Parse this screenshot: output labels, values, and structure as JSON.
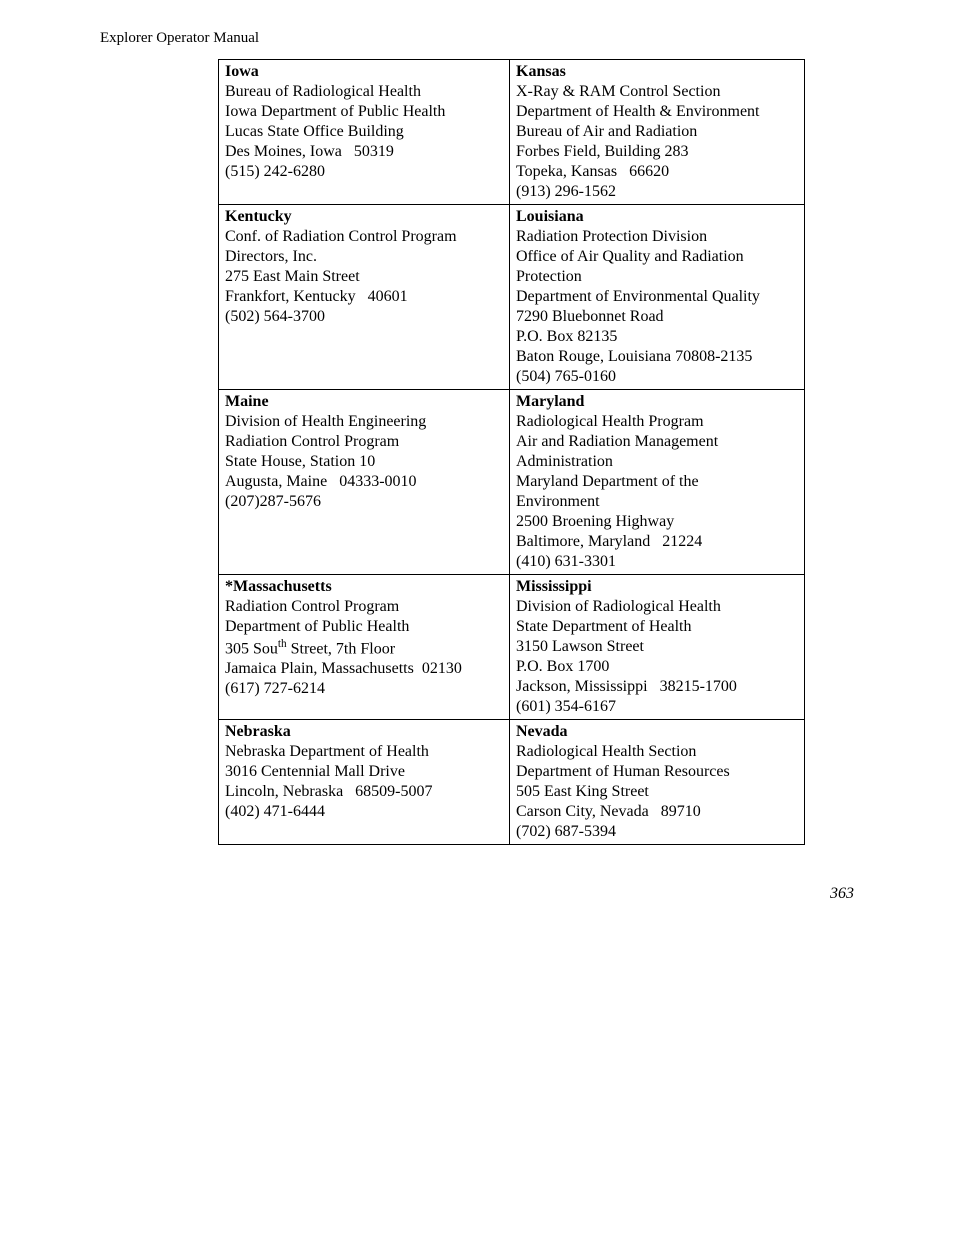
{
  "header": "Explorer Operator Manual",
  "page_number": "363",
  "table": {
    "rows": [
      {
        "left": {
          "state": "Iowa",
          "lines": [
            "Bureau of Radiological Health",
            "Iowa Department of Public Health",
            "Lucas State Office Building",
            "Des Moines, Iowa   50319",
            "(515) 242-6280"
          ]
        },
        "right": {
          "state": "Kansas",
          "lines": [
            "X-Ray & RAM Control Section",
            "Department of Health & Environment",
            "Bureau of Air and Radiation",
            "Forbes Field, Building 283",
            "Topeka, Kansas   66620",
            "(913) 296-1562"
          ]
        }
      },
      {
        "left": {
          "state": "Kentucky",
          "lines": [
            "Conf. of Radiation Control Program",
            "Directors, Inc.",
            "275 East Main Street",
            "Frankfort, Kentucky   40601",
            "(502) 564-3700"
          ]
        },
        "right": {
          "state": "Louisiana",
          "lines": [
            "Radiation Protection Division",
            "Office of Air Quality and Radiation",
            "Protection",
            "Department of Environmental Quality",
            "7290 Bluebonnet Road",
            "P.O. Box 82135",
            "Baton Rouge, Louisiana 70808-2135",
            "(504) 765-0160"
          ]
        }
      },
      {
        "left": {
          "state": "Maine",
          "lines": [
            "Division of Health Engineering",
            "Radiation Control Program",
            "State House, Station 10",
            "Augusta, Maine   04333-0010",
            "(207)287-5676"
          ]
        },
        "right": {
          "state": "Maryland",
          "lines": [
            "Radiological Health Program",
            "Air and Radiation Management",
            "Administration",
            "Maryland Department of the",
            "Environment",
            "2500 Broening Highway",
            "Baltimore, Maryland   21224",
            "(410) 631-3301"
          ]
        }
      },
      {
        "left": {
          "state": "*Massachusetts",
          "lines": [
            "Radiation Control Program",
            "Department of Public Health",
            "305 South Street, 7th Floor",
            "Jamaica Plain, Massachusetts  02130",
            "(617) 727-6214"
          ],
          "superscript_line_index": 2,
          "superscript_text": "th"
        },
        "right": {
          "state": "Mississippi",
          "lines": [
            "Division of Radiological Health",
            "State Department of Health",
            "3150 Lawson Street",
            "P.O. Box 1700",
            "Jackson, Mississippi   38215-1700",
            "(601) 354-6167"
          ]
        }
      },
      {
        "left": {
          "state": "Nebraska",
          "lines": [
            "Nebraska Department of Health",
            "3016 Centennial Mall Drive",
            "Lincoln, Nebraska   68509-5007",
            "(402) 471-6444"
          ]
        },
        "right": {
          "state": "Nevada",
          "lines": [
            "Radiological Health Section",
            "Department of Human Resources",
            "505 East King Street",
            "Carson City, Nevada   89710",
            "(702) 687-5394"
          ]
        }
      }
    ]
  }
}
